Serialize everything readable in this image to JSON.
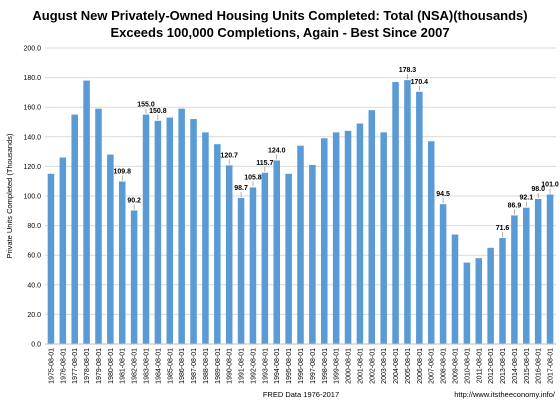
{
  "chart_data": {
    "type": "bar",
    "title": "August New Privately-Owned Housing Units Completed: Total (NSA)(thousands)",
    "subtitle": "Exceeds 100,000 Completions, Again - Best Since 2007",
    "xlabel": "FRED Data 1976-2017",
    "ylabel": "Private Units Completed (Thousands)",
    "source_credit": "http://www.itstheeconomy.info/",
    "ylim": [
      0,
      200
    ],
    "yticks": [
      "0.0",
      "20.0",
      "40.0",
      "60.0",
      "80.0",
      "100.0",
      "120.0",
      "140.0",
      "160.0",
      "180.0",
      "200.0"
    ],
    "grid": true,
    "bar_color": "#5b9bd5",
    "categories": [
      "1975-08-01",
      "1976-08-01",
      "1977-08-01",
      "1978-08-01",
      "1979-08-01",
      "1980-08-01",
      "1981-08-01",
      "1982-08-01",
      "1983-08-01",
      "1984-08-01",
      "1985-08-01",
      "1986-08-01",
      "1987-08-01",
      "1988-08-01",
      "1989-08-01",
      "1990-08-01",
      "1991-08-01",
      "1992-08-01",
      "1993-08-01",
      "1994-08-01",
      "1995-08-01",
      "1996-08-01",
      "1997-08-01",
      "1998-08-01",
      "1999-08-01",
      "2000-08-01",
      "2001-08-01",
      "2002-08-01",
      "2003-08-01",
      "2004-08-01",
      "2005-08-01",
      "2006-08-01",
      "2007-08-01",
      "2008-08-01",
      "2009-08-01",
      "2010-08-01",
      "2011-08-01",
      "2012-08-01",
      "2013-08-01",
      "2014-08-01",
      "2015-08-01",
      "2016-08-01",
      "2017-08-01"
    ],
    "values": [
      115.0,
      126.0,
      155.0,
      178.0,
      159.0,
      128.0,
      109.8,
      90.2,
      155.0,
      150.8,
      153.0,
      159.0,
      152.0,
      143.0,
      135.0,
      120.7,
      98.7,
      105.8,
      115.7,
      124.0,
      115.0,
      134.0,
      121.0,
      139.0,
      143.0,
      144.0,
      149.0,
      158.0,
      143.0,
      177.0,
      178.3,
      170.4,
      137.0,
      94.5,
      74.0,
      55.0,
      58.0,
      65.0,
      71.6,
      86.9,
      92.1,
      98.0,
      101.0
    ],
    "data_labels": [
      {
        "index": 6,
        "text": "109.8"
      },
      {
        "index": 7,
        "text": "90.2"
      },
      {
        "index": 8,
        "text": "155.0"
      },
      {
        "index": 9,
        "text": "150.8"
      },
      {
        "index": 15,
        "text": "120.7"
      },
      {
        "index": 16,
        "text": "98.7"
      },
      {
        "index": 17,
        "text": "105.8"
      },
      {
        "index": 18,
        "text": "115.7"
      },
      {
        "index": 19,
        "text": "124.0"
      },
      {
        "index": 30,
        "text": "178.3"
      },
      {
        "index": 31,
        "text": "170.4"
      },
      {
        "index": 33,
        "text": "94.5"
      },
      {
        "index": 38,
        "text": "71.6"
      },
      {
        "index": 39,
        "text": "86.9"
      },
      {
        "index": 40,
        "text": "92.1"
      },
      {
        "index": 41,
        "text": "98.0"
      },
      {
        "index": 42,
        "text": "101.0"
      }
    ]
  }
}
